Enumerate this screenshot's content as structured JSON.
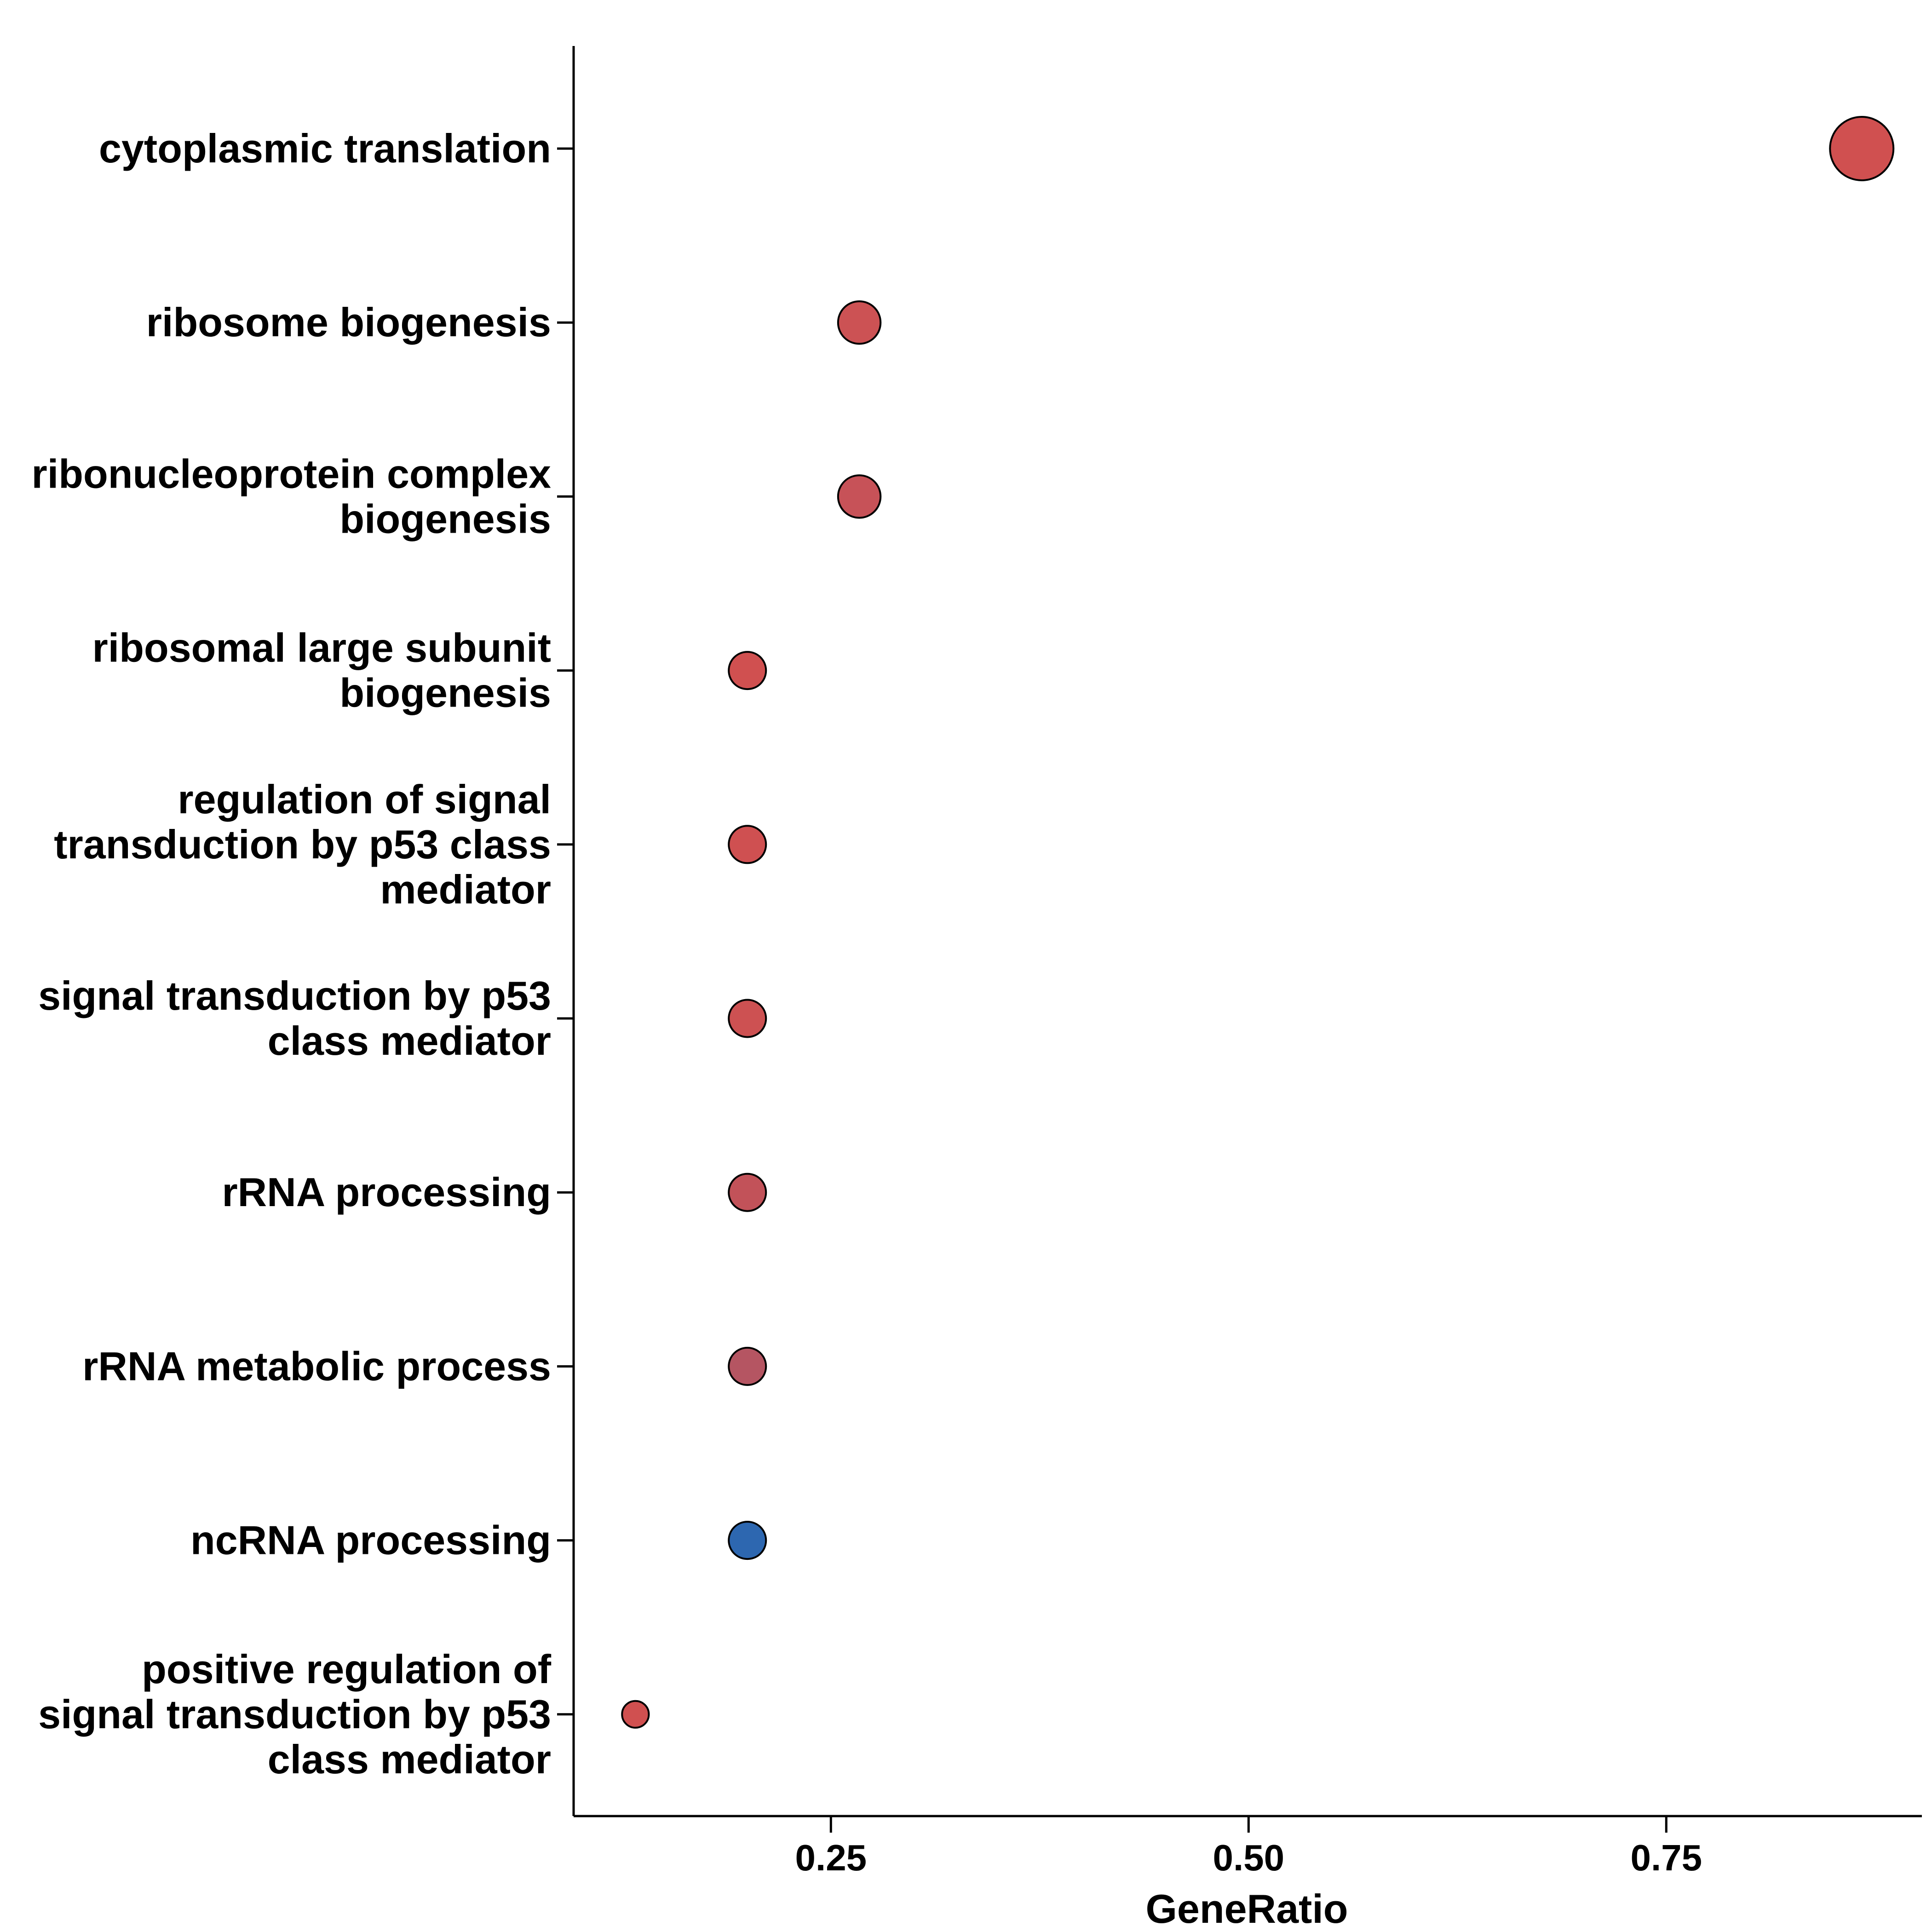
{
  "chart_data": {
    "type": "scatter",
    "title": "",
    "xlabel": "GeneRatio",
    "ylabel": "",
    "xlim": [
      0.096,
      0.903
    ],
    "xticks": [
      0.25,
      0.5,
      0.75
    ],
    "xtick_labels": [
      "0.25",
      "0.50",
      "0.75"
    ],
    "grid": false,
    "legend": "none",
    "points": [
      {
        "category": [
          "cytoplasmic translation"
        ],
        "x": 0.867,
        "size": 10,
        "color": "#d05050"
      },
      {
        "category": [
          "ribosome biogenesis"
        ],
        "x": 0.267,
        "size": 6,
        "color": "#cc5254"
      },
      {
        "category": [
          "ribonucleoprotein complex",
          "biogenesis"
        ],
        "x": 0.267,
        "size": 6,
        "color": "#c75258"
      },
      {
        "category": [
          "ribosomal large subunit",
          "biogenesis"
        ],
        "x": 0.2,
        "size": 5,
        "color": "#d05050"
      },
      {
        "category": [
          "regulation of signal",
          "transduction by p53 class",
          "mediator"
        ],
        "x": 0.2,
        "size": 5,
        "color": "#cf5051"
      },
      {
        "category": [
          "signal transduction by p53",
          "class mediator"
        ],
        "x": 0.2,
        "size": 5,
        "color": "#cd5152"
      },
      {
        "category": [
          "rRNA processing"
        ],
        "x": 0.2,
        "size": 5,
        "color": "#c25259"
      },
      {
        "category": [
          "rRNA metabolic process"
        ],
        "x": 0.2,
        "size": 5,
        "color": "#b55562"
      },
      {
        "category": [
          "ncRNA processing"
        ],
        "x": 0.2,
        "size": 5,
        "color": "#2d67b0"
      },
      {
        "category": [
          "positive regulation of",
          "signal transduction by p53",
          "class mediator"
        ],
        "x": 0.133,
        "size": 3,
        "color": "#d05050"
      }
    ]
  }
}
